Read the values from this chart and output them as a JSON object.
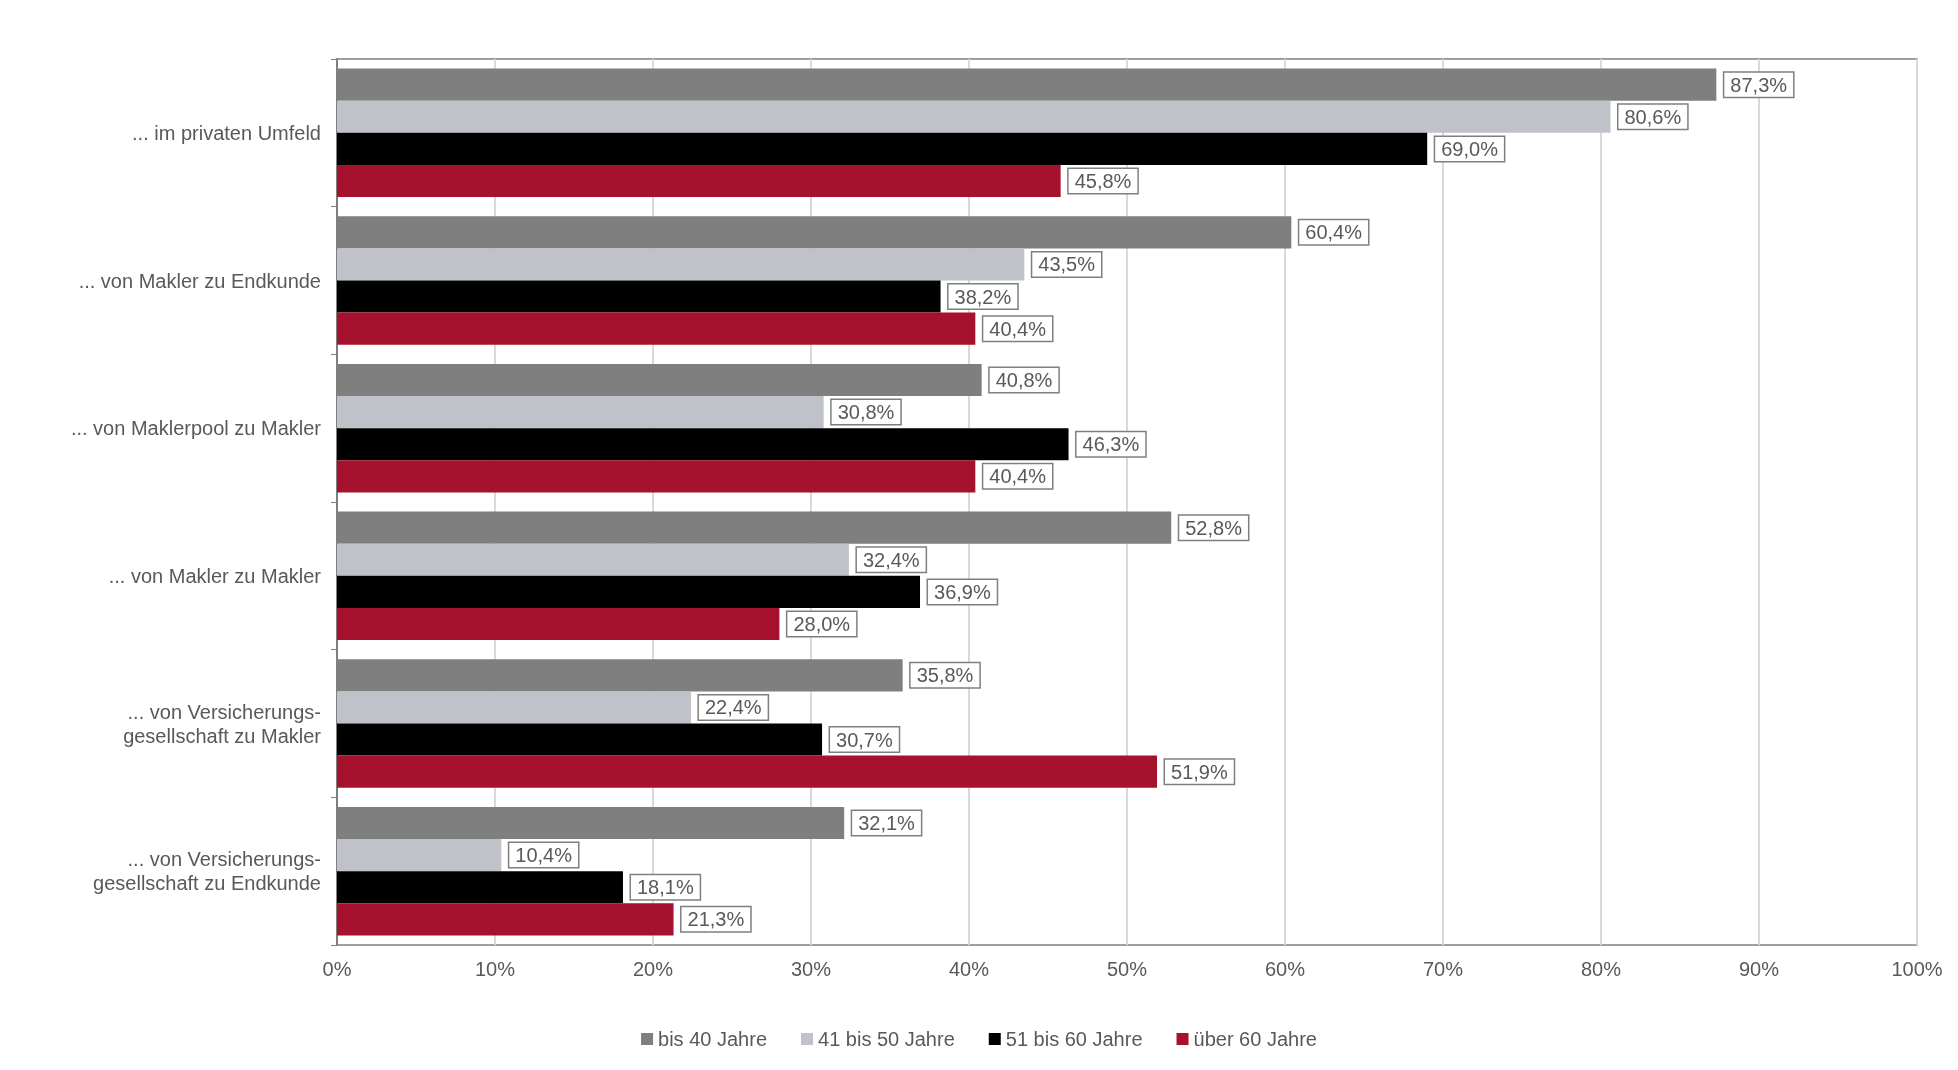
{
  "chart_data": {
    "type": "bar",
    "orientation": "horizontal",
    "categories": [
      "... im privaten Umfeld",
      "... von Makler zu Endkunde",
      "... von Maklerpool zu Makler",
      "... von Makler zu Makler",
      "... von Versicherungs-\ngesellschaft zu Makler",
      "... von Versicherungs-\ngesellschaft zu Endkunde"
    ],
    "series": [
      {
        "name": "bis 40 Jahre",
        "color": "#7f7f7f",
        "values": [
          87.3,
          60.4,
          40.8,
          52.8,
          35.8,
          32.1
        ],
        "value_labels": [
          "87,3%",
          "60,4%",
          "40,8%",
          "52,8%",
          "35,8%",
          "32,1%"
        ]
      },
      {
        "name": "41 bis 50 Jahre",
        "color": "#bfc2c8",
        "values": [
          80.6,
          43.5,
          30.8,
          32.4,
          22.4,
          10.4
        ],
        "value_labels": [
          "80,6%",
          "43,5%",
          "30,8%",
          "32,4%",
          "22,4%",
          "10,4%"
        ]
      },
      {
        "name": "51 bis 60 Jahre",
        "color": "#000000",
        "values": [
          69.0,
          38.2,
          46.3,
          36.9,
          30.7,
          18.1
        ],
        "value_labels": [
          "69,0%",
          "38,2%",
          "46,3%",
          "36,9%",
          "30,7%",
          "18,1%"
        ]
      },
      {
        "name": "über 60 Jahre",
        "color": "#a6122d",
        "values": [
          45.8,
          40.4,
          40.4,
          28.0,
          51.9,
          21.3
        ],
        "value_labels": [
          "45,8%",
          "40,4%",
          "40,4%",
          "28,0%",
          "51,9%",
          "21,3%"
        ]
      }
    ],
    "xlim": [
      0,
      100
    ],
    "xticks": [
      {
        "value": 0,
        "label": "0%"
      },
      {
        "value": 10,
        "label": "10%"
      },
      {
        "value": 20,
        "label": "20%"
      },
      {
        "value": 30,
        "label": "30%"
      },
      {
        "value": 40,
        "label": "40%"
      },
      {
        "value": 50,
        "label": "50%"
      },
      {
        "value": 60,
        "label": "60%"
      },
      {
        "value": 70,
        "label": "70%"
      },
      {
        "value": 80,
        "label": "80%"
      },
      {
        "value": 90,
        "label": "90%"
      },
      {
        "value": 100,
        "label": "100%"
      }
    ],
    "grid": "x",
    "legend": "bottom"
  }
}
